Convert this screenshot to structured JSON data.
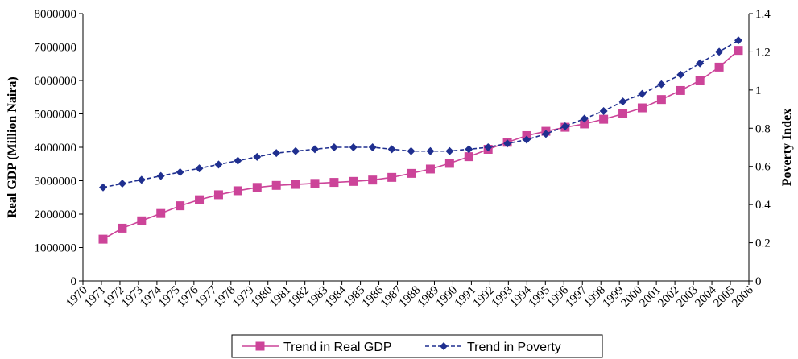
{
  "chart_data": {
    "type": "line",
    "y_label": "Real GDP (Million Naira)",
    "y2_label": "Poverty Index",
    "categories": [
      "1970",
      "1971",
      "1972",
      "1973",
      "1974",
      "1975",
      "1976",
      "1977",
      "1978",
      "1979",
      "1980",
      "1981",
      "1982",
      "1983",
      "1984",
      "1985",
      "1986",
      "1987",
      "1988",
      "1989",
      "1990",
      "1991",
      "1992",
      "1993",
      "1994",
      "1995",
      "1996",
      "1997",
      "1998",
      "1999",
      "2000",
      "2001",
      "2002",
      "2003",
      "2004",
      "2005",
      "2006"
    ],
    "series": [
      {
        "name": "Trend in Real GDP",
        "color": "#cc4499",
        "marker": "square",
        "dash": false,
        "values": [
          1250000,
          1580000,
          1800000,
          2020000,
          2250000,
          2430000,
          2580000,
          2700000,
          2800000,
          2860000,
          2890000,
          2920000,
          2950000,
          2980000,
          3020000,
          3100000,
          3220000,
          3350000,
          3520000,
          3720000,
          3940000,
          4150000,
          4350000,
          4480000,
          4600000,
          4700000,
          4840000,
          5000000,
          5180000,
          5430000,
          5700000,
          6000000,
          6400000,
          6900000,
          null,
          null,
          null
        ]
      },
      {
        "name": "Trend in Poverty",
        "color": "#1f2f8f",
        "marker": "diamond",
        "dash": true,
        "axis": "y2",
        "values": [
          0.49,
          0.51,
          0.53,
          0.55,
          0.57,
          0.59,
          0.61,
          0.63,
          0.65,
          0.67,
          0.68,
          0.69,
          0.7,
          0.7,
          0.7,
          0.69,
          0.68,
          0.68,
          0.68,
          0.69,
          0.7,
          0.72,
          0.74,
          0.77,
          0.81,
          0.85,
          0.89,
          0.94,
          0.98,
          1.03,
          1.08,
          1.14,
          1.2,
          1.26,
          null,
          null,
          null
        ]
      }
    ],
    "ylim": [
      0,
      8000000
    ],
    "yticks": [
      0,
      1000000,
      2000000,
      3000000,
      4000000,
      5000000,
      6000000,
      7000000,
      8000000
    ],
    "y2lim": [
      0,
      1.4
    ],
    "y2ticks": [
      0,
      0.2,
      0.4,
      0.6,
      0.8,
      1,
      1.2,
      1.4
    ],
    "legend": "bottom"
  }
}
